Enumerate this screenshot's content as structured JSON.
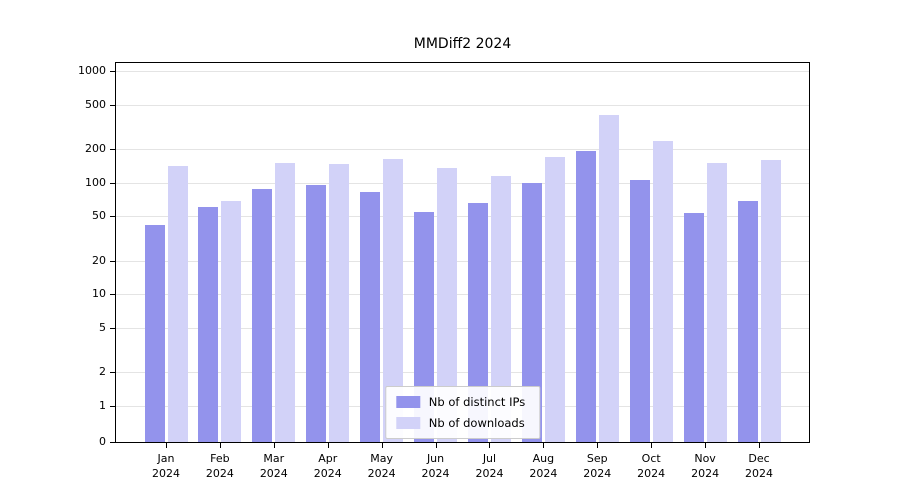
{
  "chart_data": {
    "type": "bar",
    "title": "MMDiff2 2024",
    "categories": [
      "Jan",
      "Feb",
      "Mar",
      "Apr",
      "May",
      "Jun",
      "Jul",
      "Aug",
      "Sep",
      "Oct",
      "Nov",
      "Dec"
    ],
    "year_label": "2024",
    "series": [
      {
        "name": "Nb of distinct IPs",
        "color": "#9393ec",
        "values": [
          42,
          60,
          87,
          96,
          82,
          55,
          65,
          100,
          190,
          105,
          53,
          68
        ]
      },
      {
        "name": "Nb of downloads",
        "color": "#d2d2f8",
        "values": [
          140,
          68,
          150,
          147,
          162,
          135,
          115,
          168,
          400,
          235,
          150,
          158
        ]
      }
    ],
    "yscale": "symlog",
    "yticks": [
      1000,
      500,
      200,
      100,
      50,
      20,
      10,
      5,
      2,
      1,
      0
    ],
    "ylim": [
      0,
      1230
    ],
    "grid": true,
    "legend_position": "lower center"
  }
}
